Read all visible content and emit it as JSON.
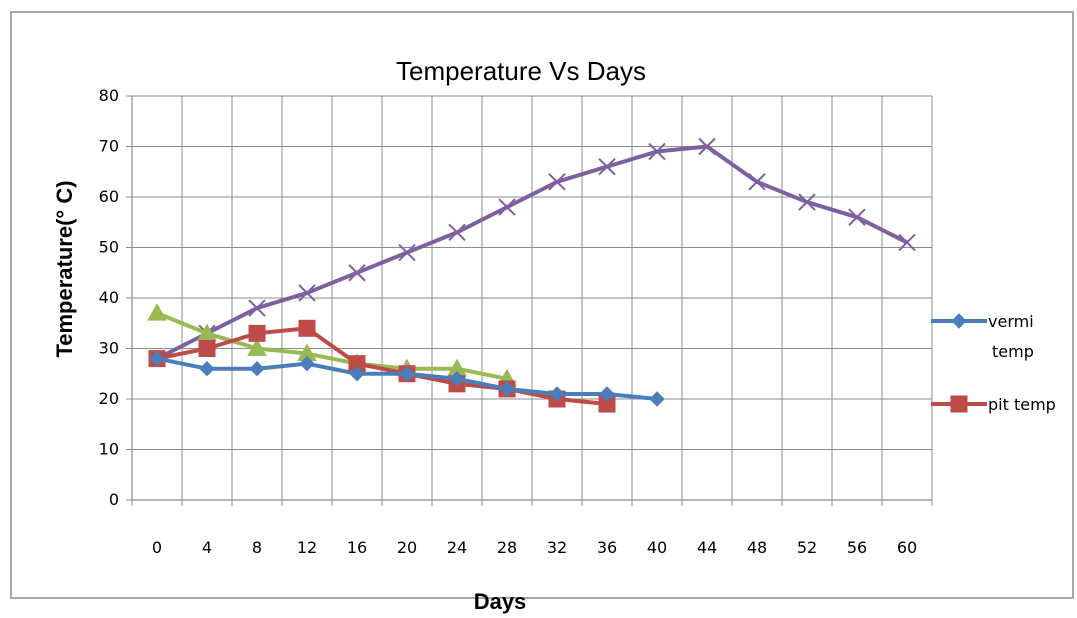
{
  "chart_data": {
    "type": "line",
    "title": "Temperature Vs Days",
    "xlabel": "Days",
    "ylabel": "Temperature(° C)",
    "ylim": [
      0,
      80
    ],
    "y_ticks": [
      0,
      10,
      20,
      30,
      40,
      50,
      60,
      70,
      80
    ],
    "categories": [
      0,
      4,
      8,
      12,
      16,
      20,
      24,
      28,
      32,
      36,
      40,
      44,
      48,
      52,
      56,
      60
    ],
    "grid": true,
    "legend_position": "right",
    "series": [
      {
        "name": "vermi temp",
        "color": "#4a7ebb",
        "marker": "diamond",
        "values": [
          28,
          26,
          26,
          27,
          25,
          25,
          24,
          22,
          21,
          21,
          20,
          null,
          null,
          null,
          null,
          null
        ]
      },
      {
        "name": "pit temp",
        "color": "#be4b48",
        "marker": "square",
        "values": [
          28,
          30,
          33,
          34,
          27,
          25,
          23,
          22,
          20,
          19,
          null,
          null,
          null,
          null,
          null,
          null
        ]
      },
      {
        "color": "#98b954",
        "marker": "triangle",
        "values": [
          37,
          33,
          30,
          29,
          27,
          26,
          26,
          24,
          null,
          null,
          null,
          null,
          null,
          null,
          null,
          null
        ]
      },
      {
        "color": "#7d60a0",
        "marker": "x",
        "values": [
          28,
          33,
          38,
          41,
          45,
          49,
          53,
          58,
          63,
          66,
          69,
          70,
          63,
          59,
          56,
          51
        ]
      }
    ]
  }
}
